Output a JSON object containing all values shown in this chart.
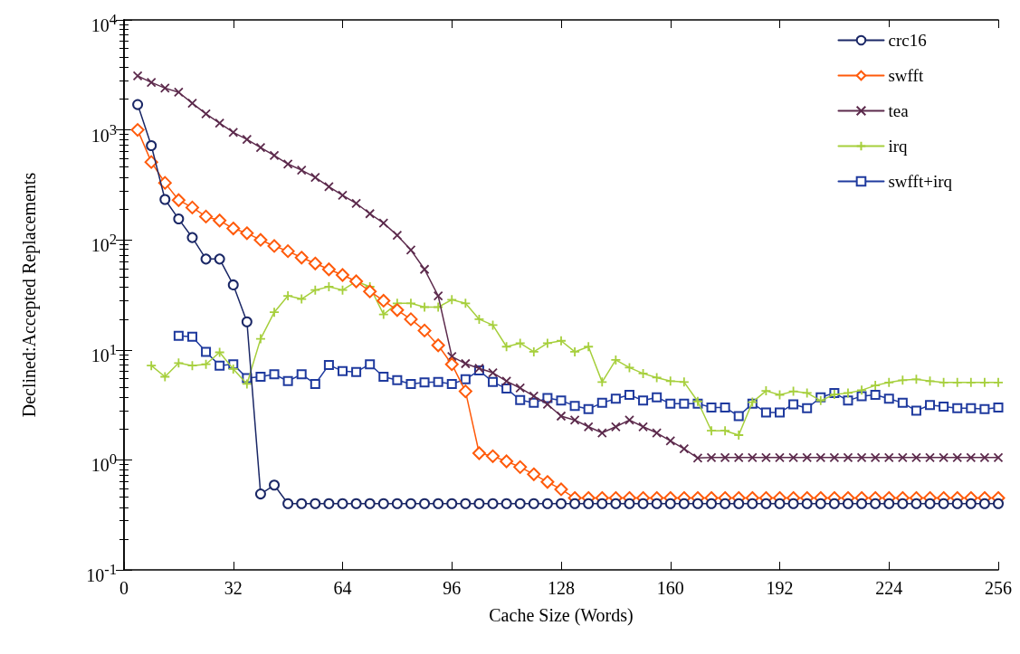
{
  "chart_data": {
    "type": "line",
    "xlabel": "Cache Size (Words)",
    "ylabel": "Declined:Accepted Replacements",
    "x": [
      4,
      8,
      12,
      16,
      20,
      24,
      28,
      32,
      36,
      40,
      44,
      48,
      52,
      56,
      60,
      64,
      68,
      72,
      76,
      80,
      84,
      88,
      92,
      96,
      100,
      104,
      108,
      112,
      116,
      120,
      124,
      128,
      132,
      136,
      140,
      144,
      148,
      152,
      156,
      160,
      164,
      168,
      172,
      176,
      180,
      184,
      188,
      192,
      196,
      200,
      204,
      208,
      212,
      216,
      220,
      224,
      228,
      232,
      236,
      240,
      244,
      248,
      252,
      256
    ],
    "series": [
      {
        "name": "crc16",
        "color": "#1a2766",
        "marker": "circle",
        "values": [
          1700,
          720,
          233,
          155,
          105,
          67,
          67,
          39,
          18,
          0.49,
          0.59,
          0.4,
          0.4,
          0.4,
          0.4,
          0.4,
          0.4,
          0.4,
          0.4,
          0.4,
          0.4,
          0.4,
          0.4,
          0.4,
          0.4,
          0.4,
          0.4,
          0.4,
          0.4,
          0.4,
          0.4,
          0.4,
          0.4,
          0.4,
          0.4,
          0.4,
          0.4,
          0.4,
          0.4,
          0.4,
          0.4,
          0.4,
          0.4,
          0.4,
          0.4,
          0.4,
          0.4,
          0.4,
          0.4,
          0.4,
          0.4,
          0.4,
          0.4,
          0.4,
          0.4,
          0.4,
          0.4,
          0.4,
          0.4,
          0.4,
          0.4,
          0.4,
          0.4,
          0.4
        ]
      },
      {
        "name": "swfft",
        "color": "#ff5a0a",
        "marker": "diamond",
        "values": [
          1000,
          510,
          330,
          230,
          197,
          163,
          150,
          127,
          115,
          100,
          88,
          79,
          69,
          61,
          54,
          48,
          42,
          34,
          28,
          23,
          19,
          15,
          11,
          7.4,
          4.2,
          1.15,
          1.08,
          0.97,
          0.86,
          0.74,
          0.63,
          0.54,
          0.45,
          0.45,
          0.45,
          0.45,
          0.45,
          0.45,
          0.45,
          0.45,
          0.45,
          0.45,
          0.45,
          0.45,
          0.45,
          0.45,
          0.45,
          0.45,
          0.45,
          0.45,
          0.45,
          0.45,
          0.45,
          0.45,
          0.45,
          0.45,
          0.45,
          0.45,
          0.45,
          0.45,
          0.45,
          0.45,
          0.45,
          0.45
        ]
      },
      {
        "name": "tea",
        "color": "#5c2a4c",
        "marker": "x",
        "values": [
          3100,
          2700,
          2400,
          2200,
          1750,
          1400,
          1150,
          950,
          820,
          690,
          585,
          490,
          430,
          370,
          305,
          255,
          215,
          173,
          142,
          110,
          81,
          54,
          31,
          8.7,
          7.5,
          6.8,
          6.2,
          5.2,
          4.5,
          3.8,
          3.2,
          2.5,
          2.3,
          2.0,
          1.76,
          2.0,
          2.3,
          2.0,
          1.76,
          1.49,
          1.26,
          1.04,
          1.05,
          1.05,
          1.05,
          1.05,
          1.05,
          1.05,
          1.05,
          1.05,
          1.05,
          1.05,
          1.05,
          1.05,
          1.05,
          1.05,
          1.05,
          1.05,
          1.05,
          1.05,
          1.05,
          1.05,
          1.05,
          1.05
        ]
      },
      {
        "name": "irq",
        "color": "#a6cf3c",
        "marker": "cross",
        "values": [
          null,
          7.2,
          5.7,
          7.6,
          7.2,
          7.4,
          9.5,
          6.7,
          4.9,
          12.6,
          22,
          31,
          29,
          35,
          37.5,
          35,
          42,
          37.5,
          21,
          26.5,
          26.5,
          24.5,
          24.5,
          28.6,
          26.5,
          19,
          16.8,
          10.7,
          11.5,
          9.6,
          11.5,
          12.1,
          9.6,
          10.7,
          5.1,
          8.1,
          6.9,
          6.1,
          5.6,
          5.2,
          5.1,
          3.4,
          1.84,
          1.84,
          1.68,
          3.35,
          4.24,
          3.9,
          4.2,
          4.06,
          3.46,
          3.93,
          4.06,
          4.3,
          4.75,
          5.06,
          5.3,
          5.4,
          5.2,
          5.06,
          5.06,
          5.06,
          5.06,
          5.06
        ]
      },
      {
        "name": "swfft+irq",
        "color": "#1f3a9e",
        "marker": "square",
        "values": [
          null,
          null,
          null,
          13.4,
          13.2,
          9.6,
          7.2,
          7.4,
          5.55,
          5.7,
          6.0,
          5.2,
          6.0,
          4.9,
          7.3,
          6.4,
          6.3,
          7.4,
          5.7,
          5.3,
          4.9,
          5.06,
          5.1,
          4.9,
          5.4,
          6.5,
          5.1,
          4.45,
          3.5,
          3.3,
          3.65,
          3.46,
          3.1,
          2.9,
          3.3,
          3.6,
          3.9,
          3.46,
          3.7,
          3.25,
          3.25,
          3.25,
          3.0,
          3.0,
          2.5,
          3.25,
          2.7,
          2.7,
          3.2,
          2.95,
          3.7,
          4.06,
          3.46,
          3.8,
          3.9,
          3.6,
          3.3,
          2.8,
          3.15,
          3.05,
          2.95,
          2.95,
          2.9,
          3.0
        ]
      }
    ],
    "xlim": [
      0,
      256
    ],
    "xticks": [
      0,
      32,
      64,
      96,
      128,
      160,
      192,
      224,
      256
    ],
    "log": "y",
    "ylim": [
      0.1,
      10000
    ],
    "yticks": [
      {
        "value": 0.1,
        "label": "10$^{-1}$"
      },
      {
        "value": 1,
        "label": "10$^{0}$"
      },
      {
        "value": 10,
        "label": "10$^{1}$"
      },
      {
        "value": 100,
        "label": "10$^{2}$"
      },
      {
        "value": 1000,
        "label": "10$^{3}$"
      },
      {
        "value": 10000,
        "label": "10$^{4}$"
      }
    ],
    "grid": false,
    "legend": "top right",
    "line_style": "solid"
  }
}
